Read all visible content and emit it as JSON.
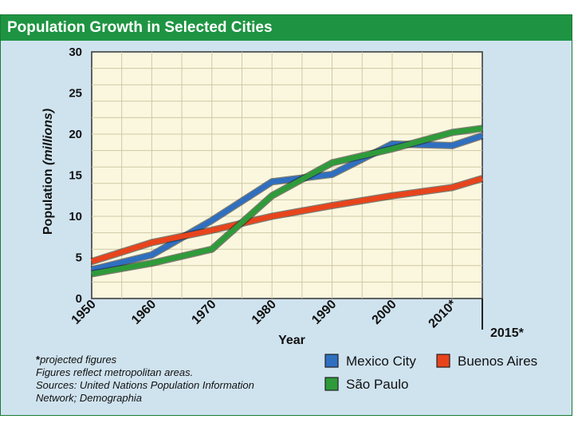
{
  "chart_data": {
    "type": "line",
    "title": "Population Growth in Selected Cities",
    "xlabel": "Year",
    "ylabel": "Population",
    "ylabel_unit": "(millions)",
    "x": [
      1950,
      1960,
      1970,
      1980,
      1990,
      2000,
      2010,
      2015
    ],
    "x_tick_labels": [
      "1950",
      "1960",
      "1970",
      "1980",
      "1990",
      "2000",
      "2010*",
      "2015*"
    ],
    "y_ticks": [
      0,
      5,
      10,
      15,
      20,
      25,
      30
    ],
    "xlim": [
      1950,
      2015
    ],
    "ylim": [
      0,
      30
    ],
    "grid": true,
    "series": [
      {
        "name": "Mexico City",
        "color": "#2f6fc0",
        "values": [
          3.5,
          5.3,
          9.5,
          14.2,
          15.1,
          18.8,
          18.6,
          19.8
        ]
      },
      {
        "name": "Buenos Aires",
        "color": "#e8441c",
        "values": [
          4.5,
          6.8,
          8.3,
          10.0,
          11.3,
          12.5,
          13.5,
          14.6
        ]
      },
      {
        "name": "São Paulo",
        "color": "#2e9b3a",
        "values": [
          3.0,
          4.3,
          6.0,
          12.5,
          16.5,
          18.2,
          20.2,
          20.7
        ]
      }
    ]
  },
  "notes": {
    "projected_prefix": "*",
    "projected": "projected figures",
    "metro": "Figures reflect metropolitan areas.",
    "sources_1": "Sources: United Nations Population Information",
    "sources_2": "Network; Demographia"
  }
}
